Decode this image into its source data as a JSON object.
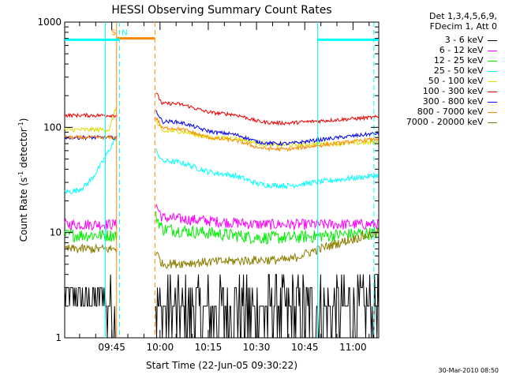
{
  "chart_data": {
    "type": "line",
    "title": "HESSI Observing Summary Count Rates",
    "xlabel": "Start Time (22-Jun-05 09:30:22)",
    "ylabel_main": "Count Rate (s",
    "ylabel_sup1": "-1",
    "ylabel_mid": " detector",
    "ylabel_sup2": "-1",
    "ylabel_end": ")",
    "y_scale": "log",
    "ylim": [
      1,
      1000
    ],
    "xlim": [
      "09:30:22",
      "11:08:00"
    ],
    "x_tick_labels": [
      "09:45",
      "10:00",
      "10:15",
      "10:30",
      "10:45",
      "11:00"
    ],
    "y_tick_labels": [
      "1",
      "10",
      "100",
      "1000"
    ],
    "grid": false,
    "legend_position": "right",
    "legend_header": [
      "Det 1,3,4,5,6,9,",
      "FDecim 1, Att 0"
    ],
    "series": [
      {
        "name": "3 - 6 keV",
        "color": "#000000"
      },
      {
        "name": "6 - 12 keV",
        "color": "#ff00ff"
      },
      {
        "name": "12 - 25 keV",
        "color": "#00ee00"
      },
      {
        "name": "25 - 50 keV",
        "color": "#00ffff"
      },
      {
        "name": "50 - 100 keV",
        "color": "#dddd00"
      },
      {
        "name": "100 - 300 keV",
        "color": "#ee0000"
      },
      {
        "name": "300 - 800 keV",
        "color": "#0000ee"
      },
      {
        "name": "800 - 7000 keV",
        "color": "#ff8800"
      },
      {
        "name": "7000 - 20000 keV",
        "color": "#8b7d00"
      }
    ],
    "annotations": [
      {
        "label": "S",
        "color": "#ff8800"
      },
      {
        "label": "N",
        "color": "#00ffff"
      }
    ],
    "footer": "30-Mar-2010 08:50"
  }
}
